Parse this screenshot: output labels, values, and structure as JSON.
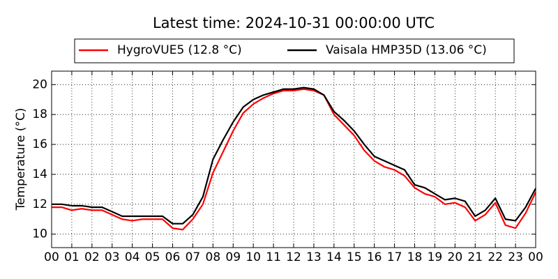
{
  "chart_data": {
    "type": "line",
    "title": "Latest time: 2024-10-31 00:00:00 UTC",
    "y_label": "Temperature (°C)",
    "x": [
      0,
      0.5,
      1,
      1.5,
      2,
      2.5,
      3,
      3.5,
      4,
      4.5,
      5,
      5.5,
      6,
      6.5,
      7,
      7.5,
      8,
      8.5,
      9,
      9.5,
      10,
      10.5,
      11,
      11.5,
      12,
      12.5,
      13,
      13.5,
      14,
      14.5,
      15,
      15.5,
      16,
      16.5,
      17,
      17.5,
      18,
      18.5,
      19,
      19.5,
      20,
      20.5,
      21,
      21.5,
      22,
      22.5,
      23,
      23.5,
      24
    ],
    "series": [
      {
        "name": "HygroVUE5 (12.8 °C)",
        "color": "#ff0000",
        "values": [
          11.8,
          11.8,
          11.6,
          11.7,
          11.6,
          11.6,
          11.3,
          11.0,
          10.9,
          11.0,
          11.0,
          11.0,
          10.4,
          10.3,
          11.0,
          12.0,
          14.1,
          15.5,
          16.9,
          18.1,
          18.7,
          19.1,
          19.4,
          19.6,
          19.6,
          19.7,
          19.6,
          19.3,
          18.0,
          17.3,
          16.6,
          15.6,
          14.9,
          14.5,
          14.3,
          13.9,
          13.1,
          12.7,
          12.5,
          12.0,
          12.1,
          11.8,
          10.9,
          11.3,
          12.1,
          10.6,
          10.4,
          11.4,
          12.8
        ]
      },
      {
        "name": "Vaisala HMP35D (13.06 °C)",
        "color": "#000000",
        "values": [
          12.0,
          12.0,
          11.9,
          11.9,
          11.8,
          11.8,
          11.5,
          11.2,
          11.2,
          11.2,
          11.2,
          11.2,
          10.7,
          10.7,
          11.3,
          12.5,
          15.0,
          16.3,
          17.5,
          18.5,
          19.0,
          19.3,
          19.5,
          19.7,
          19.7,
          19.8,
          19.7,
          19.3,
          18.2,
          17.6,
          16.9,
          16.0,
          15.2,
          14.9,
          14.6,
          14.3,
          13.3,
          13.1,
          12.7,
          12.3,
          12.4,
          12.2,
          11.2,
          11.6,
          12.4,
          11.0,
          10.9,
          11.8,
          13.06
        ]
      }
    ],
    "xlim": [
      0,
      24
    ],
    "xticks": [
      {
        "value": 0,
        "label": "00"
      },
      {
        "value": 1,
        "label": "01"
      },
      {
        "value": 2,
        "label": "02"
      },
      {
        "value": 3,
        "label": "03"
      },
      {
        "value": 4,
        "label": "04"
      },
      {
        "value": 5,
        "label": "05"
      },
      {
        "value": 6,
        "label": "06"
      },
      {
        "value": 7,
        "label": "07"
      },
      {
        "value": 8,
        "label": "08"
      },
      {
        "value": 9,
        "label": "09"
      },
      {
        "value": 10,
        "label": "10"
      },
      {
        "value": 11,
        "label": "11"
      },
      {
        "value": 12,
        "label": "12"
      },
      {
        "value": 13,
        "label": "13"
      },
      {
        "value": 14,
        "label": "14"
      },
      {
        "value": 15,
        "label": "15"
      },
      {
        "value": 16,
        "label": "16"
      },
      {
        "value": 17,
        "label": "17"
      },
      {
        "value": 18,
        "label": "18"
      },
      {
        "value": 19,
        "label": "19"
      },
      {
        "value": 20,
        "label": "20"
      },
      {
        "value": 21,
        "label": "21"
      },
      {
        "value": 22,
        "label": "22"
      },
      {
        "value": 23,
        "label": "23"
      },
      {
        "value": 24,
        "label": "00"
      }
    ],
    "ylim": [
      9.1,
      20.9
    ],
    "yticks": [
      10,
      12,
      14,
      16,
      18,
      20
    ],
    "grid": true,
    "legend": "top"
  }
}
